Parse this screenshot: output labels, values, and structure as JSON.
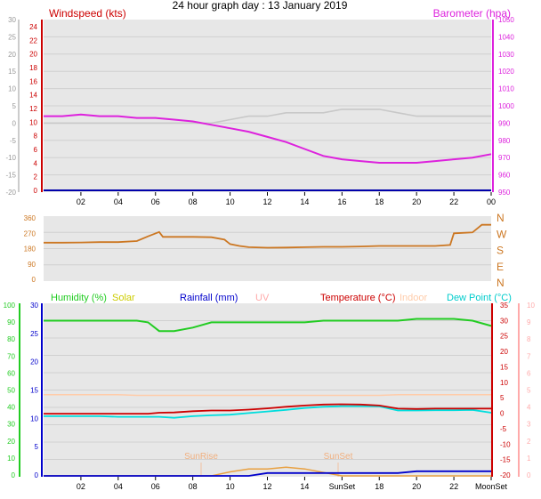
{
  "title": "24 hour graph day : 13 January 2019",
  "colors": {
    "wind": "#cc0000",
    "baro": "#dd22dd",
    "winddir": "#cc7722",
    "humidity": "#22cc22",
    "solar": "#cccc00",
    "rain": "#0000cc",
    "uv": "#ffaaaa",
    "temp": "#cc0000",
    "indoor": "#ffccaa",
    "dew": "#00dddd",
    "gust": "#c8c8c8",
    "axisgray": "#888888"
  },
  "icons": {
    "winddir": "compass-letters"
  },
  "time_ticks": [
    "02",
    "04",
    "06",
    "08",
    "10",
    "12",
    "14",
    "16",
    "18",
    "20",
    "22",
    "00"
  ],
  "time_ticks_bottom": [
    "02",
    "04",
    "06",
    "08",
    "10",
    "12",
    "14",
    "SunSet",
    "18",
    "20",
    "22",
    "MoonSet"
  ],
  "chart_data": [
    {
      "type": "line",
      "title": "",
      "left_axis_label": "Windspeed (kts)",
      "right_axis_label": "Barometer (hpa)",
      "left_ticks_outer": [
        "30",
        "25",
        "20",
        "15",
        "10",
        "5",
        "0",
        "-5",
        "-10",
        "-15",
        "-20"
      ],
      "left_ticks_inner": [
        "24",
        "22",
        "20",
        "18",
        "16",
        "14",
        "12",
        "10",
        "8",
        "6",
        "4",
        "2",
        "0"
      ],
      "right_ticks": [
        "1050",
        "1040",
        "1030",
        "1020",
        "1010",
        "1000",
        "990",
        "980",
        "970",
        "960",
        "950"
      ],
      "ylim_left": [
        0,
        25
      ],
      "ylim_right": [
        950,
        1050
      ],
      "x": [
        0,
        1,
        2,
        3,
        4,
        5,
        6,
        7,
        8,
        9,
        10,
        11,
        12,
        13,
        14,
        15,
        16,
        17,
        18,
        19,
        20,
        21,
        22,
        23,
        24
      ],
      "series": [
        {
          "name": "Barometer (hpa)",
          "axis": "right",
          "values": [
            994,
            994,
            995,
            994,
            994,
            993,
            993,
            992,
            991,
            989,
            987,
            985,
            982,
            979,
            975,
            971,
            969,
            968,
            967,
            967,
            967,
            968,
            969,
            970,
            972
          ]
        },
        {
          "name": "Windspeed (kts)",
          "axis": "left",
          "values": [
            0,
            0,
            0,
            0,
            0,
            0,
            0,
            0,
            0,
            0,
            0,
            0,
            0,
            0,
            0,
            0,
            0,
            0,
            0,
            0,
            0,
            0,
            0,
            0,
            0
          ]
        },
        {
          "name": "gust",
          "axis": "left",
          "values": [
            10,
            10,
            10,
            10,
            10,
            10,
            10,
            10,
            10,
            10,
            10.5,
            11,
            11,
            11.5,
            11.5,
            11.5,
            12,
            12,
            12,
            11.5,
            11,
            11,
            11,
            11,
            11
          ]
        }
      ]
    },
    {
      "type": "line",
      "title": "",
      "left_ticks": [
        "360",
        "270",
        "180",
        "90",
        "0"
      ],
      "right_ticks": [
        "N",
        "W",
        "S",
        "E",
        "N"
      ],
      "ylim": [
        0,
        360
      ],
      "x": [
        0,
        1,
        2,
        3,
        4,
        5,
        5.6,
        6.2,
        6.4,
        7,
        8,
        9,
        9.7,
        10,
        10.5,
        11,
        12,
        13,
        14,
        15,
        16,
        17,
        18,
        19,
        20,
        21,
        21.8,
        22,
        23,
        23.5,
        24
      ],
      "series": [
        {
          "name": "Wind direction",
          "values": [
            213,
            213,
            214,
            216,
            216,
            222,
            248,
            272,
            245,
            245,
            245,
            243,
            230,
            205,
            195,
            188,
            185,
            186,
            188,
            190,
            190,
            192,
            195,
            195,
            195,
            195,
            200,
            265,
            270,
            312,
            312
          ]
        }
      ]
    },
    {
      "type": "line",
      "title": "",
      "labels": {
        "humidity": "Humidity (%)",
        "solar": "Solar",
        "rain": "Rainfall (mm)",
        "uv": "UV",
        "temp": "Temperature (°C)",
        "indoor": "Indoor",
        "dew": "Dew Point (°C)"
      },
      "left_ticks_outer": [
        "100",
        "90",
        "80",
        "70",
        "60",
        "50",
        "40",
        "30",
        "20",
        "10",
        "0"
      ],
      "left_ticks_inner": [
        "30",
        "25",
        "20",
        "15",
        "10",
        "5",
        "0"
      ],
      "right_ticks_inner": [
        "35",
        "30",
        "25",
        "20",
        "15",
        "10",
        "5",
        "0",
        "-5",
        "-10",
        "-15",
        "-20"
      ],
      "right_ticks_outer": [
        "10",
        "9",
        "8",
        "7",
        "6",
        "5",
        "4",
        "3",
        "2",
        "1",
        "0"
      ],
      "ylim_humidity": [
        0,
        100
      ],
      "ylim_temp": [
        -20,
        35
      ],
      "annotations": [
        "SunRise",
        "SunSet"
      ],
      "x": [
        0,
        1,
        2,
        3,
        4,
        5,
        5.6,
        6.2,
        7,
        8,
        9,
        10,
        11,
        12,
        13,
        14,
        15,
        16,
        17,
        18,
        19,
        20,
        21,
        22,
        23,
        24
      ],
      "series": [
        {
          "name": "Humidity (%)",
          "axis": "humidity",
          "values": [
            90,
            90,
            90,
            90,
            90,
            90,
            89,
            84,
            84,
            86,
            89,
            89,
            89,
            89,
            89,
            89,
            90,
            90,
            90,
            90,
            90,
            91,
            91,
            91,
            90,
            87
          ]
        },
        {
          "name": "Indoor",
          "axis": "temp",
          "values": [
            6,
            6,
            6,
            6,
            6,
            5.8,
            5.8,
            5.8,
            5.8,
            5.8,
            5.8,
            5.8,
            5.8,
            5.8,
            5.8,
            5.8,
            5.8,
            5.8,
            5.8,
            5.8,
            6,
            6,
            6,
            6,
            6,
            6
          ]
        },
        {
          "name": "Temperature (°C)",
          "axis": "temp",
          "values": [
            0,
            0,
            0,
            0,
            0,
            0,
            0,
            0.3,
            0.4,
            0.8,
            1,
            1,
            1.3,
            1.7,
            2.2,
            2.6,
            2.9,
            3,
            2.9,
            2.6,
            1.6,
            1.5,
            1.6,
            1.6,
            1.6,
            1.6
          ]
        },
        {
          "name": "Dew Point (°C)",
          "axis": "temp",
          "values": [
            -0.8,
            -0.8,
            -0.8,
            -0.8,
            -1,
            -1,
            -1,
            -1,
            -1.3,
            -0.8,
            -0.5,
            -0.3,
            0.2,
            0.7,
            1.2,
            1.8,
            2.2,
            2.4,
            2.4,
            2.3,
            1,
            1,
            1.1,
            1.1,
            1.2,
            0.3
          ]
        },
        {
          "name": "Rainfall (mm)",
          "axis": "rain",
          "values": [
            0,
            0,
            0,
            0,
            0,
            0,
            0,
            0,
            0,
            0,
            0,
            0,
            0,
            0.5,
            0.5,
            0.5,
            0.5,
            0.5,
            0.5,
            0.5,
            0.5,
            0.8,
            0.8,
            0.8,
            0.8,
            0.8
          ]
        },
        {
          "name": "Solar",
          "axis": "rain",
          "values": [
            0,
            0,
            0,
            0,
            0,
            0,
            0,
            0,
            0,
            0,
            0,
            0.7,
            1.2,
            1.2,
            1.5,
            1.2,
            0.6,
            0,
            0,
            0,
            0,
            0,
            0,
            0,
            0,
            0
          ]
        }
      ]
    }
  ]
}
